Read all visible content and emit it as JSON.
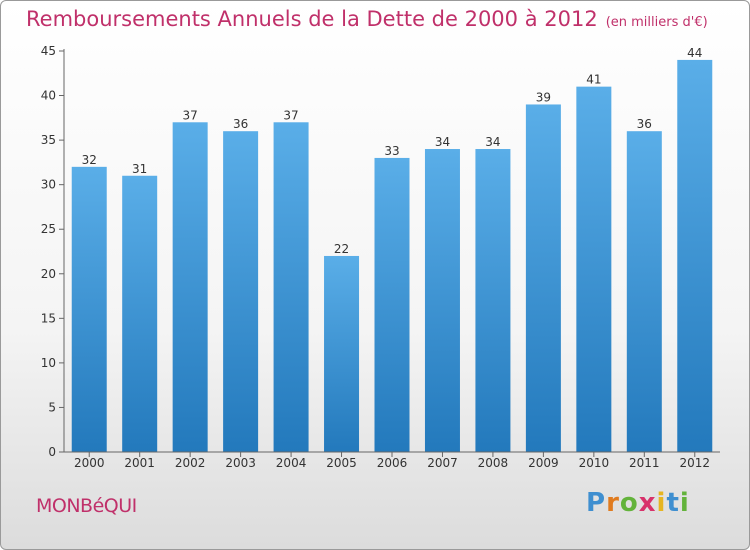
{
  "title": "Remboursements Annuels de la Dette de 2000 à 2012",
  "unit_note": "(en milliers d'€)",
  "town": "MONBéQUI",
  "logo": {
    "letters": [
      "P",
      "r",
      "o",
      "x",
      "i",
      "t",
      "i"
    ],
    "colors": [
      "#3f8fd0",
      "#e07b1f",
      "#63b33b",
      "#d8326b",
      "#e6b521",
      "#3f8fd0",
      "#63b33b"
    ]
  },
  "colors": {
    "bar_light": "#5aaee8",
    "bar_dark": "#2379bc",
    "title": "#c0306a",
    "grid": "#cccccc"
  },
  "chart_data": {
    "type": "bar",
    "categories": [
      "2000",
      "2001",
      "2002",
      "2003",
      "2004",
      "2005",
      "2006",
      "2007",
      "2008",
      "2009",
      "2010",
      "2011",
      "2012"
    ],
    "values": [
      32,
      31,
      37,
      36,
      37,
      22,
      33,
      34,
      34,
      39,
      41,
      36,
      44
    ],
    "title": "Remboursements Annuels de la Dette de 2000 à 2012",
    "xlabel": "",
    "ylabel": "",
    "ylim": [
      0,
      45
    ],
    "yticks": [
      0,
      5,
      10,
      15,
      20,
      25,
      30,
      35,
      40,
      45
    ],
    "grid": false,
    "data_labels": true
  }
}
